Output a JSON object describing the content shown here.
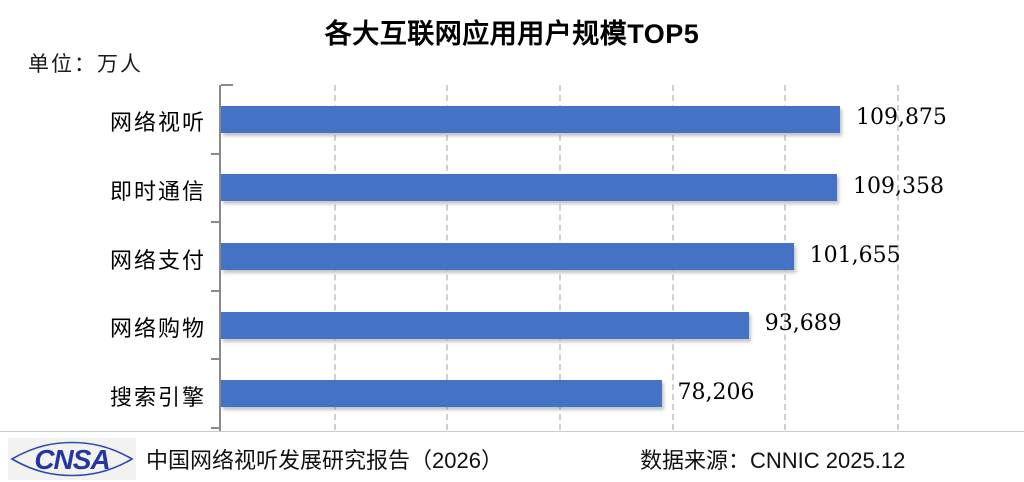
{
  "page": {
    "background": "#ffffff"
  },
  "header": {
    "title": "各大互联网应用用户规模TOP5",
    "unit_label": "单位：万人"
  },
  "chart_data": {
    "type": "bar",
    "orientation": "horizontal",
    "title": "各大互联网应用用户规模TOP5",
    "unit": "万人",
    "categories": [
      "网络视听",
      "即时通信",
      "网络支付",
      "网络购物",
      "搜索引擎"
    ],
    "values": [
      109875,
      109358,
      101655,
      93689,
      78206
    ],
    "value_labels": [
      "109,875",
      "109,358",
      "101,655",
      "93,689",
      "78,206"
    ],
    "xlim": [
      0,
      120000
    ],
    "gridline_interval": 20000,
    "grid": "vertical-dashed",
    "legend": "none",
    "bar_color": "#4473C5",
    "gridline_color": "#d0d0d0",
    "axis_color": "#8a8a8a"
  },
  "footer": {
    "logo_text": "CNSA",
    "logo_color": "#2336a3",
    "source_left": "中国网络视听发展研究报告（2026）",
    "source_right": "数据来源：CNNIC 2025.12",
    "divider_color": "#8c9c80"
  }
}
